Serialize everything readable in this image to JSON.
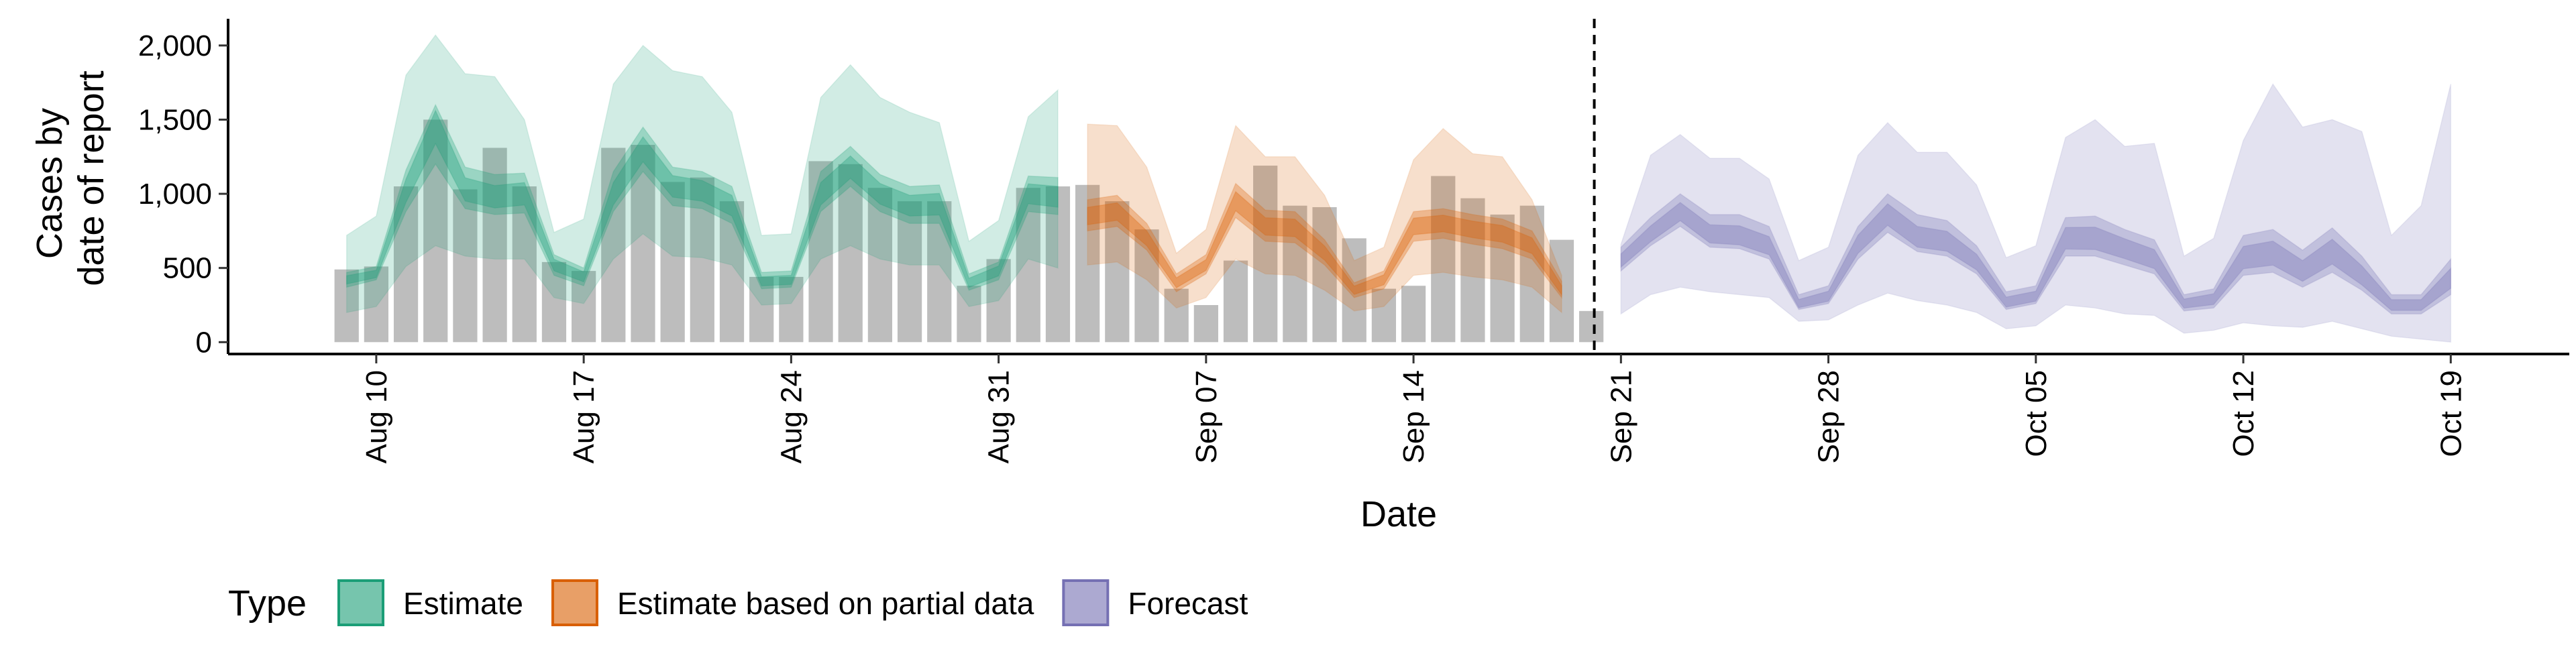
{
  "chart_data": {
    "type": "area",
    "title": "",
    "xlabel": "Date",
    "ylabel_lines": [
      "Cases by",
      "date of report"
    ],
    "yticks": [
      0,
      500,
      1000,
      1500,
      2000
    ],
    "ytick_labels": [
      "0",
      "500",
      "1,000",
      "1,500",
      "2,000"
    ],
    "xtick_labels": [
      "Aug 10",
      "Aug 17",
      "Aug 24",
      "Aug 31",
      "Sep 07",
      "Sep 14",
      "Sep 21",
      "Sep 28",
      "Oct 05",
      "Oct 12",
      "Oct 19"
    ],
    "xtick_dates": [
      "2020-08-10",
      "2020-08-17",
      "2020-08-24",
      "2020-08-31",
      "2020-09-07",
      "2020-09-14",
      "2020-09-21",
      "2020-09-28",
      "2020-10-05",
      "2020-10-12",
      "2020-10-19"
    ],
    "x_range": [
      "2020-08-05",
      "2020-10-23"
    ],
    "ylim": [
      -80,
      2180
    ],
    "grid": false,
    "forecast_date": "2020-09-20",
    "legend": {
      "title": "Type",
      "position": "bottom",
      "items": [
        {
          "label": "Estimate",
          "color": "#1b9e77"
        },
        {
          "label": "Estimate based on partial data",
          "color": "#d95f02"
        },
        {
          "label": "Forecast",
          "color": "#7570b3"
        }
      ]
    },
    "colors": {
      "bars": "#bdbdbd",
      "estimate": "#1b9e77",
      "partial": "#d95f02",
      "forecast": "#7570b3"
    },
    "reported_cases": {
      "start_date": "2020-08-09",
      "values": [
        490,
        510,
        1050,
        1500,
        1030,
        1310,
        1050,
        540,
        480,
        1310,
        1330,
        1080,
        1110,
        950,
        440,
        440,
        1220,
        1200,
        1040,
        950,
        950,
        380,
        560,
        1040,
        1050,
        1060,
        950,
        760,
        360,
        250,
        550,
        1190,
        920,
        910,
        700,
        360,
        380,
        1120,
        970,
        860,
        920,
        690,
        210
      ]
    },
    "series": [
      {
        "name": "Estimate",
        "start_date": "2020-08-09",
        "median": [
          420,
          460,
          1020,
          1450,
          1030,
          980,
          1000,
          520,
          440,
          1000,
          1300,
          1050,
          1020,
          920,
          410,
          420,
          1000,
          1180,
          1000,
          920,
          930,
          400,
          480,
          1000,
          980
        ],
        "lower50": [
          370,
          420,
          880,
          1200,
          900,
          860,
          870,
          450,
          380,
          880,
          1150,
          920,
          900,
          800,
          360,
          370,
          880,
          1050,
          880,
          800,
          800,
          350,
          420,
          880,
          860
        ],
        "upper50": [
          470,
          510,
          1160,
          1600,
          1180,
          1130,
          1140,
          590,
          500,
          1150,
          1450,
          1180,
          1150,
          1050,
          470,
          480,
          1150,
          1320,
          1130,
          1050,
          1060,
          460,
          540,
          1120,
          1110
        ],
        "lower90": [
          200,
          240,
          510,
          650,
          580,
          560,
          560,
          300,
          260,
          560,
          730,
          580,
          570,
          520,
          250,
          260,
          560,
          650,
          560,
          520,
          520,
          240,
          280,
          560,
          500
        ],
        "upper90": [
          720,
          850,
          1800,
          2070,
          1810,
          1790,
          1500,
          740,
          830,
          1740,
          2000,
          1830,
          1790,
          1550,
          720,
          730,
          1650,
          1870,
          1650,
          1550,
          1480,
          680,
          820,
          1520,
          1700
        ]
      },
      {
        "name": "Estimate based on partial data",
        "start_date": "2020-09-03",
        "median": [
          850,
          880,
          700,
          400,
          520,
          950,
          780,
          770,
          600,
          350,
          420,
          780,
          800,
          760,
          730,
          650,
          350
        ],
        "lower50": [
          750,
          780,
          620,
          340,
          460,
          840,
          680,
          670,
          520,
          300,
          360,
          680,
          700,
          660,
          630,
          560,
          300
        ],
        "upper50": [
          960,
          990,
          800,
          460,
          590,
          1070,
          890,
          880,
          690,
          400,
          480,
          880,
          900,
          860,
          830,
          750,
          410
        ],
        "lower90": [
          520,
          540,
          420,
          230,
          300,
          560,
          460,
          450,
          350,
          210,
          240,
          450,
          470,
          440,
          420,
          370,
          200
        ],
        "upper90": [
          1470,
          1460,
          1180,
          600,
          760,
          1460,
          1250,
          1250,
          990,
          550,
          640,
          1230,
          1440,
          1270,
          1250,
          960,
          450
        ]
      },
      {
        "name": "Forecast",
        "start_date": "2020-09-21",
        "median": [
          550,
          730,
          880,
          730,
          720,
          650,
          260,
          310,
          660,
          860,
          710,
          680,
          540,
          270,
          310,
          700,
          700,
          630,
          560,
          260,
          290,
          570,
          600,
          480,
          610,
          450,
          250,
          250,
          430
        ],
        "lower50": [
          480,
          650,
          780,
          640,
          630,
          560,
          220,
          260,
          560,
          740,
          610,
          580,
          460,
          220,
          260,
          580,
          580,
          520,
          460,
          210,
          230,
          450,
          470,
          370,
          470,
          350,
          190,
          190,
          320
        ],
        "upper50": [
          640,
          840,
          1000,
          860,
          860,
          780,
          320,
          380,
          780,
          1000,
          860,
          820,
          650,
          340,
          380,
          840,
          850,
          760,
          690,
          320,
          360,
          720,
          760,
          620,
          770,
          580,
          320,
          320,
          560
        ],
        "lower90": [
          190,
          320,
          370,
          340,
          320,
          300,
          140,
          150,
          250,
          330,
          280,
          250,
          200,
          90,
          110,
          250,
          230,
          190,
          180,
          60,
          80,
          130,
          110,
          100,
          140,
          90,
          40,
          20,
          0
        ],
        "upper90": [
          660,
          1260,
          1400,
          1240,
          1240,
          1100,
          550,
          640,
          1260,
          1480,
          1280,
          1280,
          1060,
          570,
          650,
          1380,
          1500,
          1320,
          1340,
          580,
          700,
          1360,
          1740,
          1450,
          1500,
          1420,
          720,
          920,
          1740
        ]
      }
    ]
  }
}
